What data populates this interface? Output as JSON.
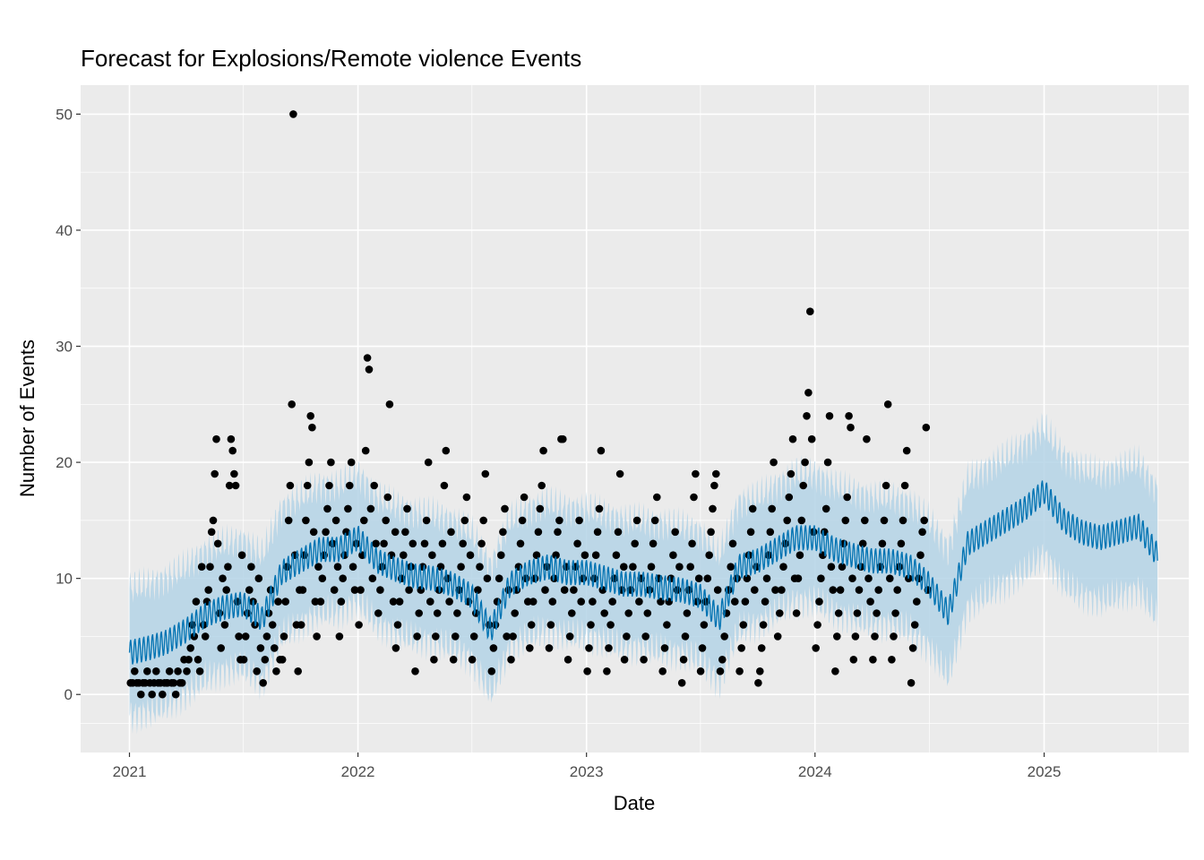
{
  "chart_data": {
    "type": "scatter",
    "title": "Forecast for Explosions/Remote violence Events",
    "xlabel": "Date",
    "ylabel": "Number of Events",
    "xlim": [
      "2020-10-15",
      "2025-08-20"
    ],
    "ylim": [
      -5,
      52.5
    ],
    "x_ticks": [
      "2021",
      "2022",
      "2023",
      "2024",
      "2025"
    ],
    "y_ticks": [
      0,
      10,
      20,
      30,
      40,
      50
    ],
    "grid": true,
    "legend": "none",
    "colors": {
      "panel": "#ebebeb",
      "grid": "#ffffff",
      "points": "#000000",
      "forecast_line": "#0072b2",
      "interval_band": "#b4d4e6"
    },
    "series": [
      {
        "kind": "observed_points",
        "x_range": [
          "2021-01-01",
          "2024-06-30"
        ],
        "monthly_points": [
          {
            "month": "2021-01",
            "values": [
              1,
              1,
              2,
              1,
              1,
              0,
              1,
              1,
              2
            ]
          },
          {
            "month": "2021-02",
            "values": [
              1,
              0,
              1,
              2,
              1,
              1,
              0,
              1,
              1
            ]
          },
          {
            "month": "2021-03",
            "values": [
              1,
              2,
              1,
              1,
              0,
              2,
              1,
              1,
              3
            ]
          },
          {
            "month": "2021-04",
            "values": [
              2,
              3,
              4,
              6,
              5,
              8,
              3,
              2,
              11,
              6
            ]
          },
          {
            "month": "2021-05",
            "values": [
              5,
              8,
              9,
              11,
              14,
              15,
              19,
              22,
              13,
              7,
              4,
              10
            ]
          },
          {
            "month": "2021-06",
            "values": [
              6,
              9,
              11,
              18,
              22,
              21,
              19,
              18,
              8,
              5,
              3,
              12
            ]
          },
          {
            "month": "2021-07",
            "values": [
              3,
              5,
              7,
              9,
              11,
              8,
              6,
              2,
              10,
              4
            ]
          },
          {
            "month": "2021-08",
            "values": [
              1,
              3,
              5,
              7,
              9,
              6,
              4,
              2,
              8,
              3
            ]
          },
          {
            "month": "2021-09",
            "values": [
              3,
              5,
              8,
              11,
              15,
              18,
              25,
              50,
              12,
              6,
              2,
              9
            ]
          },
          {
            "month": "2021-10",
            "values": [
              6,
              9,
              12,
              15,
              18,
              20,
              24,
              23,
              14,
              8,
              5,
              11
            ]
          },
          {
            "month": "2021-11",
            "values": [
              8,
              10,
              12,
              14,
              16,
              18,
              20,
              13,
              9,
              15,
              11
            ]
          },
          {
            "month": "2021-12",
            "values": [
              5,
              8,
              10,
              12,
              14,
              16,
              18,
              20,
              11,
              9,
              13
            ]
          },
          {
            "month": "2022-01",
            "values": [
              6,
              9,
              12,
              15,
              21,
              29,
              28,
              16,
              10,
              18,
              13
            ]
          },
          {
            "month": "2022-02",
            "values": [
              7,
              9,
              11,
              13,
              15,
              17,
              25,
              12,
              8,
              14
            ]
          },
          {
            "month": "2022-03",
            "values": [
              4,
              6,
              8,
              10,
              12,
              14,
              16,
              9,
              11,
              13
            ]
          },
          {
            "month": "2022-04",
            "values": [
              2,
              5,
              7,
              9,
              11,
              13,
              15,
              20,
              8,
              12
            ]
          },
          {
            "month": "2022-05",
            "values": [
              3,
              5,
              7,
              9,
              11,
              13,
              18,
              21,
              10,
              8,
              14
            ]
          },
          {
            "month": "2022-06",
            "values": [
              3,
              5,
              7,
              9,
              11,
              13,
              15,
              17,
              8,
              12
            ]
          },
          {
            "month": "2022-07",
            "values": [
              3,
              5,
              7,
              9,
              11,
              13,
              15,
              19,
              10,
              6
            ]
          },
          {
            "month": "2022-08",
            "values": [
              2,
              4,
              6,
              8,
              10,
              12,
              14,
              16,
              5,
              9
            ]
          },
          {
            "month": "2022-09",
            "values": [
              3,
              5,
              7,
              9,
              11,
              13,
              15,
              17,
              10,
              8
            ]
          },
          {
            "month": "2022-10",
            "values": [
              4,
              6,
              8,
              10,
              12,
              14,
              16,
              18,
              21,
              9,
              11
            ]
          },
          {
            "month": "2022-11",
            "values": [
              4,
              6,
              8,
              10,
              12,
              14,
              15,
              22,
              22,
              9,
              11
            ]
          },
          {
            "month": "2022-12",
            "values": [
              3,
              5,
              7,
              9,
              11,
              13,
              15,
              8,
              10,
              12
            ]
          },
          {
            "month": "2023-01",
            "values": [
              2,
              4,
              6,
              8,
              10,
              12,
              14,
              16,
              21,
              9,
              7
            ]
          },
          {
            "month": "2023-02",
            "values": [
              2,
              4,
              6,
              8,
              10,
              12,
              14,
              19,
              9,
              11
            ]
          },
          {
            "month": "2023-03",
            "values": [
              3,
              5,
              7,
              9,
              11,
              13,
              15,
              8,
              10
            ]
          },
          {
            "month": "2023-04",
            "values": [
              3,
              5,
              7,
              9,
              11,
              13,
              15,
              17,
              10,
              8
            ]
          },
          {
            "month": "2023-05",
            "values": [
              2,
              4,
              6,
              8,
              10,
              12,
              14,
              9,
              11
            ]
          },
          {
            "month": "2023-06",
            "values": [
              1,
              3,
              5,
              7,
              9,
              11,
              13,
              17,
              19,
              8,
              10
            ]
          },
          {
            "month": "2023-07",
            "values": [
              2,
              4,
              6,
              8,
              10,
              12,
              14,
              16,
              18,
              19,
              9
            ]
          },
          {
            "month": "2023-08",
            "values": [
              2,
              3,
              5,
              7,
              9,
              11,
              13,
              8,
              10
            ]
          },
          {
            "month": "2023-09",
            "values": [
              2,
              4,
              6,
              8,
              10,
              12,
              14,
              16,
              9,
              11
            ]
          },
          {
            "month": "2023-10",
            "values": [
              1,
              2,
              4,
              6,
              8,
              10,
              12,
              14,
              16,
              20,
              9
            ]
          },
          {
            "month": "2023-11",
            "values": [
              5,
              7,
              9,
              11,
              13,
              15,
              17,
              19,
              22,
              10
            ]
          },
          {
            "month": "2023-12",
            "values": [
              7,
              10,
              12,
              15,
              18,
              20,
              24,
              26,
              33,
              22,
              14
            ]
          },
          {
            "month": "2024-01",
            "values": [
              4,
              6,
              8,
              10,
              12,
              14,
              16,
              20,
              24,
              11,
              9
            ]
          },
          {
            "month": "2024-02",
            "values": [
              2,
              5,
              7,
              9,
              11,
              13,
              15,
              17,
              24,
              23,
              10
            ]
          },
          {
            "month": "2024-03",
            "values": [
              3,
              5,
              7,
              9,
              11,
              13,
              15,
              22,
              10,
              8
            ]
          },
          {
            "month": "2024-04",
            "values": [
              3,
              5,
              7,
              9,
              11,
              13,
              15,
              18,
              25,
              10
            ]
          },
          {
            "month": "2024-05",
            "values": [
              3,
              5,
              7,
              9,
              11,
              13,
              15,
              18,
              21,
              10
            ]
          },
          {
            "month": "2024-06",
            "values": [
              1,
              4,
              6,
              8,
              10,
              12,
              14,
              15,
              23,
              9
            ]
          }
        ]
      },
      {
        "kind": "forecast_line",
        "x": [
          "2021-01-01",
          "2021-02-01",
          "2021-03-01",
          "2021-04-01",
          "2021-05-01",
          "2021-06-01",
          "2021-07-01",
          "2021-08-01",
          "2021-09-01",
          "2021-10-01",
          "2021-11-01",
          "2021-12-01",
          "2022-01-01",
          "2022-02-01",
          "2022-03-01",
          "2022-04-01",
          "2022-05-01",
          "2022-06-01",
          "2022-07-01",
          "2022-08-01",
          "2022-09-01",
          "2022-10-01",
          "2022-11-01",
          "2022-12-01",
          "2023-01-01",
          "2023-02-01",
          "2023-03-01",
          "2023-04-01",
          "2023-05-01",
          "2023-06-01",
          "2023-07-01",
          "2023-08-01",
          "2023-09-01",
          "2023-10-01",
          "2023-11-01",
          "2023-12-01",
          "2024-01-01",
          "2024-02-01",
          "2024-03-01",
          "2024-04-01",
          "2024-05-01",
          "2024-06-01",
          "2024-07-01",
          "2024-08-01",
          "2024-09-01",
          "2024-10-01",
          "2024-11-01",
          "2024-12-01",
          "2025-01-01",
          "2025-02-01",
          "2025-03-01",
          "2025-04-01",
          "2025-05-01",
          "2025-06-01",
          "2025-07-01"
        ],
        "values": [
          3.6,
          4.0,
          4.5,
          5.5,
          6.8,
          7.5,
          7.8,
          6.5,
          10.5,
          11.5,
          12.5,
          12.5,
          13.5,
          11.5,
          10.8,
          10.2,
          10.0,
          9.5,
          8.5,
          5.5,
          9.5,
          10.5,
          11.0,
          10.5,
          10.5,
          10.0,
          9.5,
          9.5,
          9.2,
          9.0,
          8.5,
          6.5,
          11.0,
          11.5,
          12.5,
          13.5,
          13.5,
          12.5,
          12.0,
          11.5,
          11.5,
          11.0,
          9.5,
          7.0,
          13.0,
          14.0,
          15.0,
          16.0,
          17.5,
          15.0,
          14.0,
          13.5,
          14.0,
          14.5,
          12.0
        ],
        "interval_halfwidth": [
          5.5,
          5.5,
          5.5,
          5.5,
          5.5,
          5.5,
          5.5,
          5.5,
          5.5,
          5.5,
          5.5,
          5.5,
          5.5,
          5.5,
          5.5,
          5.5,
          5.5,
          5.5,
          5.5,
          5.5,
          5.5,
          5.5,
          5.5,
          5.5,
          5.5,
          5.5,
          5.5,
          5.5,
          5.5,
          5.5,
          5.5,
          5.5,
          5.5,
          5.5,
          5.5,
          5.5,
          5.5,
          5.5,
          5.5,
          5.5,
          5.5,
          5.5,
          5.5,
          5.5,
          5.5,
          5.5,
          5.5,
          5.5,
          5.5,
          5.5,
          5.5,
          5.5,
          5.5,
          5.5,
          5.5
        ]
      }
    ]
  }
}
